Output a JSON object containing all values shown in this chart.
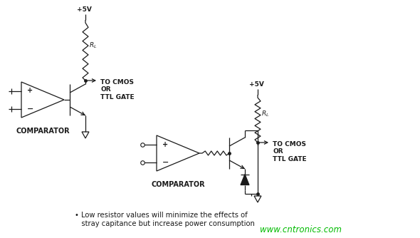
{
  "bg_color": "#ffffff",
  "line_color": "#1a1a1a",
  "watermark_color": "#00bb00",
  "watermark_text": "www.cntronics.com",
  "watermark_fontsize": 8.5,
  "note_text": "• Low resistor values will minimize the effects of\n   stray capitance but increase power consumption",
  "note_fontsize": 7.2,
  "comparator1_label": "COMPARATOR",
  "comparator2_label": "COMPARATOR",
  "label_fontsize": 7,
  "vcc_label": "+5V",
  "tocmos_label": "TO CMOS\nOR\nTTL GATE",
  "tocmos_fontsize": 6.5
}
